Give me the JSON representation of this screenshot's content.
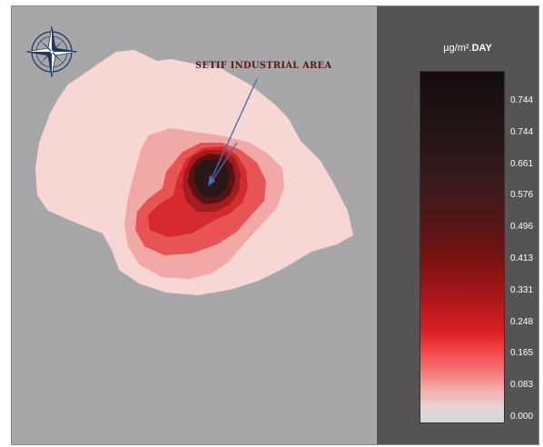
{
  "map": {
    "annotation": "SETIF INDUSTRIAL AREA",
    "compass_icon": "compass-rose-icon",
    "colors": {
      "background": "#a7a7a9",
      "zone_1": "#f6d7d4",
      "zone_2": "#f2a8a5",
      "zone_3": "#e85456",
      "zone_4": "#d42a2e",
      "zone_5": "#a01c1f",
      "zone_6": "#5a1112",
      "zone_7": "#2a1818",
      "arrow": "#4a6fb3"
    }
  },
  "legend": {
    "unit_prefix": "µg/m².",
    "unit_suffix": "DAY",
    "ticks": [
      "0.744",
      "0.744",
      "0.661",
      "0.576",
      "0.496",
      "0.413",
      "0.331",
      "0.248",
      "0.165",
      "0.083",
      "0.000"
    ]
  }
}
